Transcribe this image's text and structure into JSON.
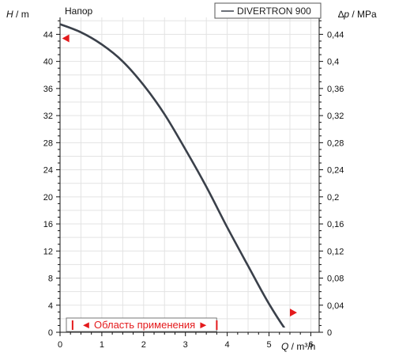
{
  "chart_data": {
    "type": "line",
    "title": "Напор",
    "y_left_label": {
      "var": "H",
      "unit": "m"
    },
    "y_right_label": {
      "var": "Δp",
      "unit": "MPa"
    },
    "x_label": {
      "var": "Q",
      "unit": "m³/h"
    },
    "x_ticks": [
      "0",
      "1",
      "2",
      "3",
      "4",
      "5",
      "6"
    ],
    "y_left_ticks": [
      "0",
      "4",
      "8",
      "12",
      "16",
      "20",
      "24",
      "28",
      "32",
      "36",
      "40",
      "44"
    ],
    "y_right_ticks": [
      "0",
      "0,04",
      "0,08",
      "0,12",
      "0,16",
      "0,2",
      "0,24",
      "0,28",
      "0,32",
      "0,36",
      "0,4",
      "0,44"
    ],
    "xlim": [
      0,
      6.2
    ],
    "ylim": [
      0,
      46.5
    ],
    "y_right_lim": [
      0,
      0.465
    ],
    "grid": true,
    "legend_position": "top-right",
    "series": [
      {
        "name": "DIVERTRON 900",
        "color": "#3a404a",
        "x": [
          0,
          0.5,
          1,
          1.5,
          2,
          2.5,
          3,
          3.5,
          4,
          4.5,
          5,
          5.5,
          5.75
        ],
        "y": [
          45.5,
          44.3,
          42.5,
          40.0,
          36.5,
          32.2,
          27.0,
          21.5,
          15.5,
          9.8,
          4.2,
          -0.5,
          -2.0
        ]
      }
    ],
    "application_range": {
      "label": "◄ Область применения ►",
      "from": 0.3,
      "to": 3.75,
      "color": "#e41a1c"
    },
    "markers": [
      {
        "x": 0.05,
        "y": 43.4,
        "direction": "left",
        "color": "#e41a1c"
      },
      {
        "x": 5.5,
        "y": 2.9,
        "direction": "right",
        "color": "#e41a1c"
      }
    ]
  }
}
